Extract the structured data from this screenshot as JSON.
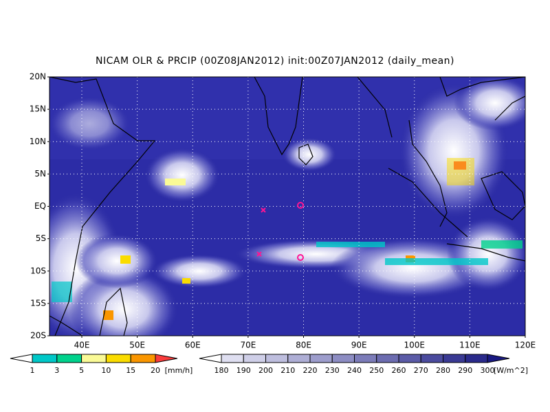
{
  "title": "NICAM OLR & PRCIP (00Z08JAN2012) init:00Z07JAN2012 (daily_mean)",
  "lat_labels": [
    "20N",
    "15N",
    "10N",
    "5N",
    "EQ",
    "5S",
    "10S",
    "15S",
    "20S"
  ],
  "lon_labels": [
    "40E",
    "50E",
    "60E",
    "70E",
    "80E",
    "90E",
    "100E",
    "110E",
    "120E"
  ],
  "precip_colorbar": {
    "labels": [
      "1",
      "3",
      "5",
      "10",
      "15",
      "20"
    ],
    "unit": "[mm/h]"
  },
  "olr_colorbar": {
    "labels": [
      "180",
      "190",
      "200",
      "210",
      "220",
      "230",
      "240",
      "250",
      "260",
      "270",
      "280",
      "290",
      "300"
    ],
    "unit": "[W/m^2]"
  }
}
